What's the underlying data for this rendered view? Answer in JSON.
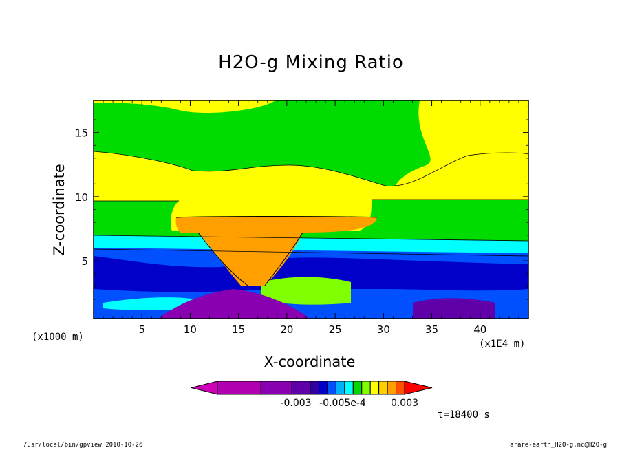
{
  "chart_data": {
    "type": "heatmap",
    "title": "H2O-g Mixing Ratio",
    "xlabel": "X-coordinate",
    "ylabel": "Z-coordinate",
    "x_unit": "(x1E4 m)",
    "y_unit": "(x1000 m)",
    "xlim": [
      0,
      45
    ],
    "ylim": [
      0.5,
      17.5
    ],
    "x_ticks": [
      5,
      10,
      15,
      20,
      25,
      30,
      35,
      40
    ],
    "y_ticks": [
      5,
      10,
      15
    ],
    "colorbar": {
      "colors": [
        "#d000b8",
        "#b000b0",
        "#8800b0",
        "#6000a8",
        "#3000a0",
        "#0000c8",
        "#0050ff",
        "#00b0ff",
        "#00ffff",
        "#00d800",
        "#80ff00",
        "#ffff00",
        "#ffd000",
        "#ffa000",
        "#ff5000",
        "#ff0000"
      ],
      "labels": [
        "-0.003",
        "-0.005e-4",
        "0.003"
      ]
    },
    "regions": [
      {
        "color": "#00dc00",
        "x": [
          0,
          45
        ],
        "z": [
          0.5,
          17.5
        ]
      },
      {
        "color": "#ffff00",
        "x": [
          0,
          45
        ],
        "z": [
          8.5,
          14.0
        ]
      },
      {
        "color": "#00ffff",
        "x": [
          0,
          45
        ],
        "z": [
          5.8,
          7.2
        ]
      },
      {
        "color": "#0050ff",
        "x": [
          0,
          45
        ],
        "z": [
          0.5,
          6.2
        ]
      },
      {
        "color": "#0000c8",
        "x": [
          0,
          45
        ],
        "z": [
          2.0,
          5.0
        ]
      },
      {
        "color": "#ffa000",
        "x": [
          10.5,
          21.5
        ],
        "z": [
          2.5,
          7.2
        ]
      },
      {
        "color": "#8800b0",
        "x": [
          13,
          24
        ],
        "z": [
          0.5,
          2.2
        ]
      }
    ],
    "time_label": "t=18400 s"
  },
  "footer": {
    "left": "/usr/local/bin/gpview  2010-10-26",
    "right": "arare-earth_H2O-g.nc@H2O-g"
  }
}
